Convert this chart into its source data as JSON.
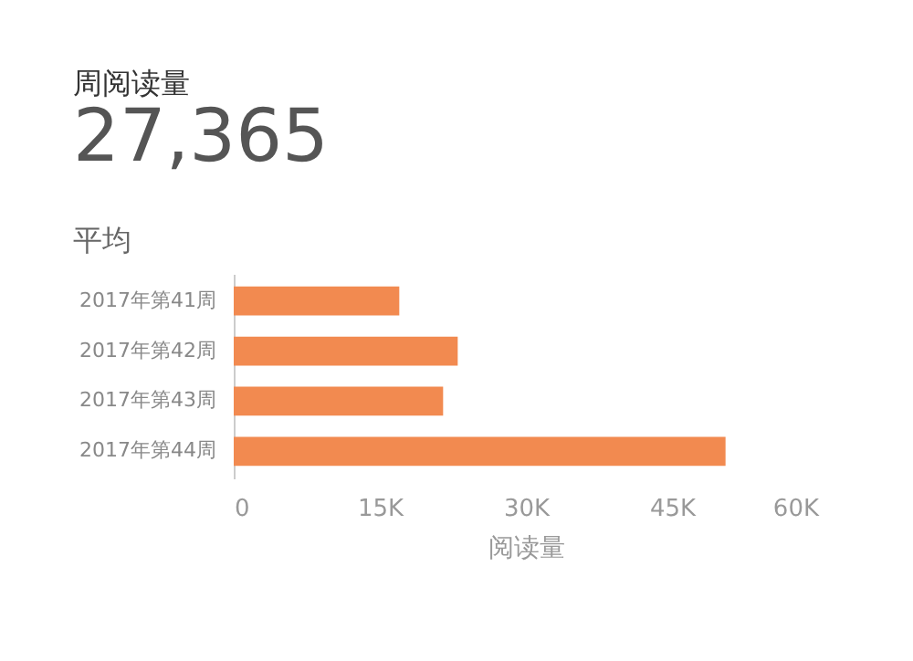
{
  "chart_data": {
    "type": "bar",
    "orientation": "horizontal",
    "title": "周阅读量",
    "subtitle": "27,365",
    "annotations": [
      "平均"
    ],
    "categories": [
      "2017年第41周",
      "2017年第42周",
      "2017年第43周",
      "2017年第44周"
    ],
    "values": [
      17000,
      23000,
      21500,
      50500
    ],
    "color": "#f28a50",
    "xlabel": "阅读量",
    "xlim": [
      0,
      60000
    ],
    "xticks": [
      0,
      {
        "value": 15000,
        "label": "15K"
      },
      {
        "value": 30000,
        "label": "30K"
      },
      {
        "value": 45000,
        "label": "45K"
      },
      {
        "value": 60000,
        "label": "60K"
      }
    ],
    "grid": false
  }
}
